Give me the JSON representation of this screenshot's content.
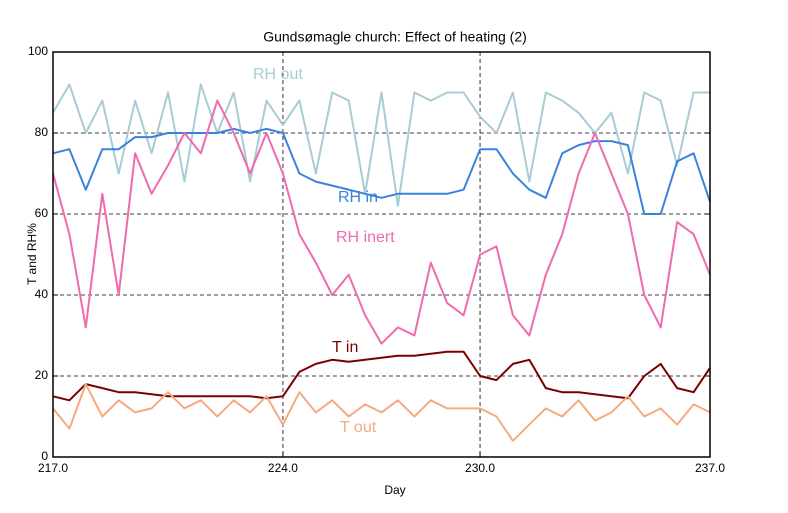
{
  "chart_data": {
    "type": "line",
    "title": "Gundsømagle church: Effect of heating (2)",
    "xlabel": "Day",
    "ylabel": "T and RH%",
    "x": [
      217,
      217.5,
      218,
      218.5,
      219,
      219.5,
      220,
      220.5,
      221,
      221.5,
      222,
      222.5,
      223,
      223.5,
      224,
      224.5,
      225,
      225.5,
      226,
      226.5,
      227,
      227.5,
      228,
      228.5,
      229,
      229.5,
      230,
      230.5,
      231,
      231.5,
      232,
      232.5,
      233,
      233.5,
      234,
      234.5,
      235,
      235.5,
      236,
      236.5,
      237
    ],
    "series": [
      {
        "name": "RH out",
        "color": "#a8ccd4",
        "values": [
          85,
          92,
          80,
          88,
          70,
          88,
          75,
          90,
          68,
          92,
          80,
          90,
          68,
          88,
          82,
          88,
          70,
          90,
          88,
          65,
          90,
          62,
          90,
          88,
          90,
          90,
          84,
          80,
          90,
          68,
          90,
          88,
          85,
          80,
          85,
          70,
          90,
          88,
          72,
          90,
          90
        ]
      },
      {
        "name": "RH in",
        "color": "#3b82e0",
        "values": [
          75,
          76,
          66,
          76,
          76,
          79,
          79,
          80,
          80,
          80,
          80,
          81,
          80,
          81,
          80,
          70,
          68,
          67,
          66,
          65,
          64,
          65,
          65,
          65,
          65,
          66,
          76,
          76,
          70,
          66,
          64,
          75,
          77,
          78,
          78,
          77,
          60,
          60,
          73,
          75,
          63
        ]
      },
      {
        "name": "RH inert",
        "color": "#f06aaf",
        "values": [
          70,
          55,
          32,
          65,
          40,
          75,
          65,
          72,
          80,
          75,
          88,
          80,
          70,
          80,
          70,
          55,
          48,
          40,
          45,
          35,
          28,
          32,
          30,
          48,
          38,
          35,
          50,
          52,
          35,
          30,
          45,
          55,
          70,
          80,
          70,
          60,
          40,
          32,
          58,
          55,
          45
        ]
      },
      {
        "name": "T in",
        "color": "#7a0000",
        "values": [
          15,
          14,
          18,
          17,
          16,
          16,
          15.5,
          15,
          15,
          15,
          15,
          15,
          15,
          14.5,
          15,
          21,
          23,
          24,
          23.5,
          24,
          24.5,
          25,
          25,
          25.5,
          26,
          26,
          20,
          19,
          23,
          24,
          17,
          16,
          16,
          15.5,
          15,
          14.5,
          20,
          23,
          17,
          16,
          22
        ]
      },
      {
        "name": "T out",
        "color": "#f5aa80",
        "values": [
          12,
          7,
          18,
          10,
          14,
          11,
          12,
          16,
          12,
          14,
          10,
          14,
          11,
          15,
          8,
          16,
          11,
          14,
          10,
          13,
          11,
          14,
          10,
          14,
          12,
          12,
          12,
          10,
          4,
          8,
          12,
          10,
          14,
          9,
          11,
          15,
          10,
          12,
          8,
          13,
          11
        ]
      }
    ],
    "xlim": [
      217,
      237
    ],
    "xticks": [
      {
        "value": 217,
        "label": "217.0"
      },
      {
        "value": 224,
        "label": "224.0"
      },
      {
        "value": 230,
        "label": "230.0"
      },
      {
        "value": 237,
        "label": "237.0"
      }
    ],
    "ylim": [
      0,
      100
    ],
    "yticks": [
      0,
      20,
      40,
      60,
      80,
      100
    ],
    "grid": true
  }
}
